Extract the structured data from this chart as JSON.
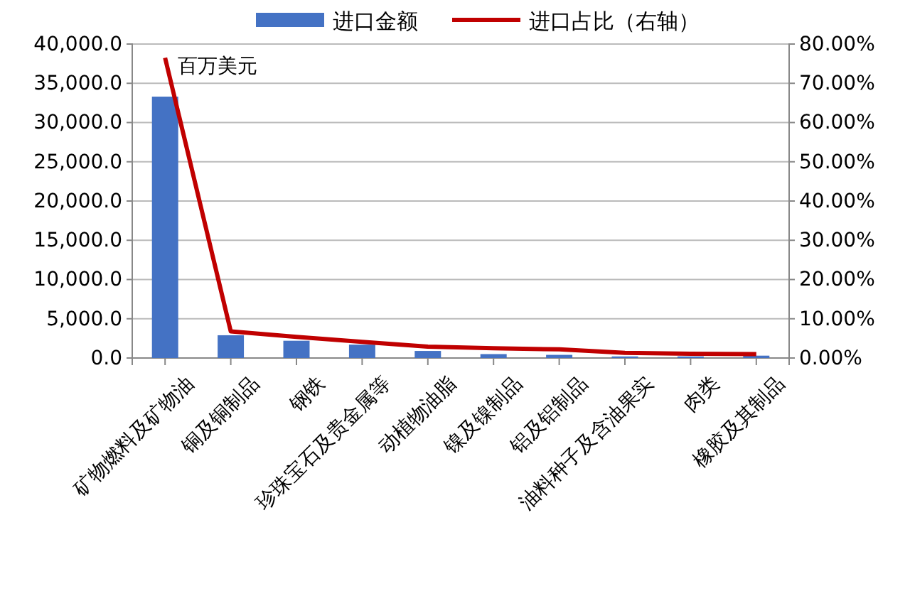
{
  "chart_data": {
    "type": "bar",
    "categories": [
      "矿物燃料及矿物油",
      "铜及铜制品",
      "钢铁",
      "珍珠宝石及贵金属等",
      "动植物油脂",
      "镍及镍制品",
      "铝及铝制品",
      "油料种子及含油果实",
      "肉类",
      "橡胶及其制品"
    ],
    "series": [
      {
        "name": "进口金额",
        "color": "#4472c4",
        "values": [
          33300,
          2900,
          2200,
          1700,
          900,
          500,
          400,
          200,
          200,
          300
        ]
      },
      {
        "name": "进口占比（右轴）",
        "type": "line",
        "axis": "y2",
        "color": "#c00000",
        "values": [
          76.5,
          6.8,
          5.4,
          4.1,
          2.9,
          2.5,
          2.2,
          1.3,
          1.1,
          1.0
        ]
      }
    ],
    "ylim": [
      0,
      40000
    ],
    "yticks": [
      {
        "value": 0,
        "label": "0.0"
      },
      {
        "value": 5000,
        "label": "5,000.0"
      },
      {
        "value": 10000,
        "label": "10,000.0"
      },
      {
        "value": 15000,
        "label": "15,000.0"
      },
      {
        "value": 20000,
        "label": "20,000.0"
      },
      {
        "value": 25000,
        "label": "25,000.0"
      },
      {
        "value": 30000,
        "label": "30,000.0"
      },
      {
        "value": 35000,
        "label": "35,000.0"
      },
      {
        "value": 40000,
        "label": "40,000.0"
      }
    ],
    "y2lim": [
      0,
      80
    ],
    "y2ticks": [
      {
        "value": 0,
        "label": "0.00%"
      },
      {
        "value": 10,
        "label": "10.00%"
      },
      {
        "value": 20,
        "label": "20.00%"
      },
      {
        "value": 30,
        "label": "30.00%"
      },
      {
        "value": 40,
        "label": "40.00%"
      },
      {
        "value": 50,
        "label": "50.00%"
      },
      {
        "value": 60,
        "label": "60.00%"
      },
      {
        "value": 70,
        "label": "70.00%"
      },
      {
        "value": 80,
        "label": "80.00%"
      }
    ],
    "grid": "y",
    "legend": "top",
    "marker": "none",
    "annotations": [
      "百万美元"
    ]
  }
}
